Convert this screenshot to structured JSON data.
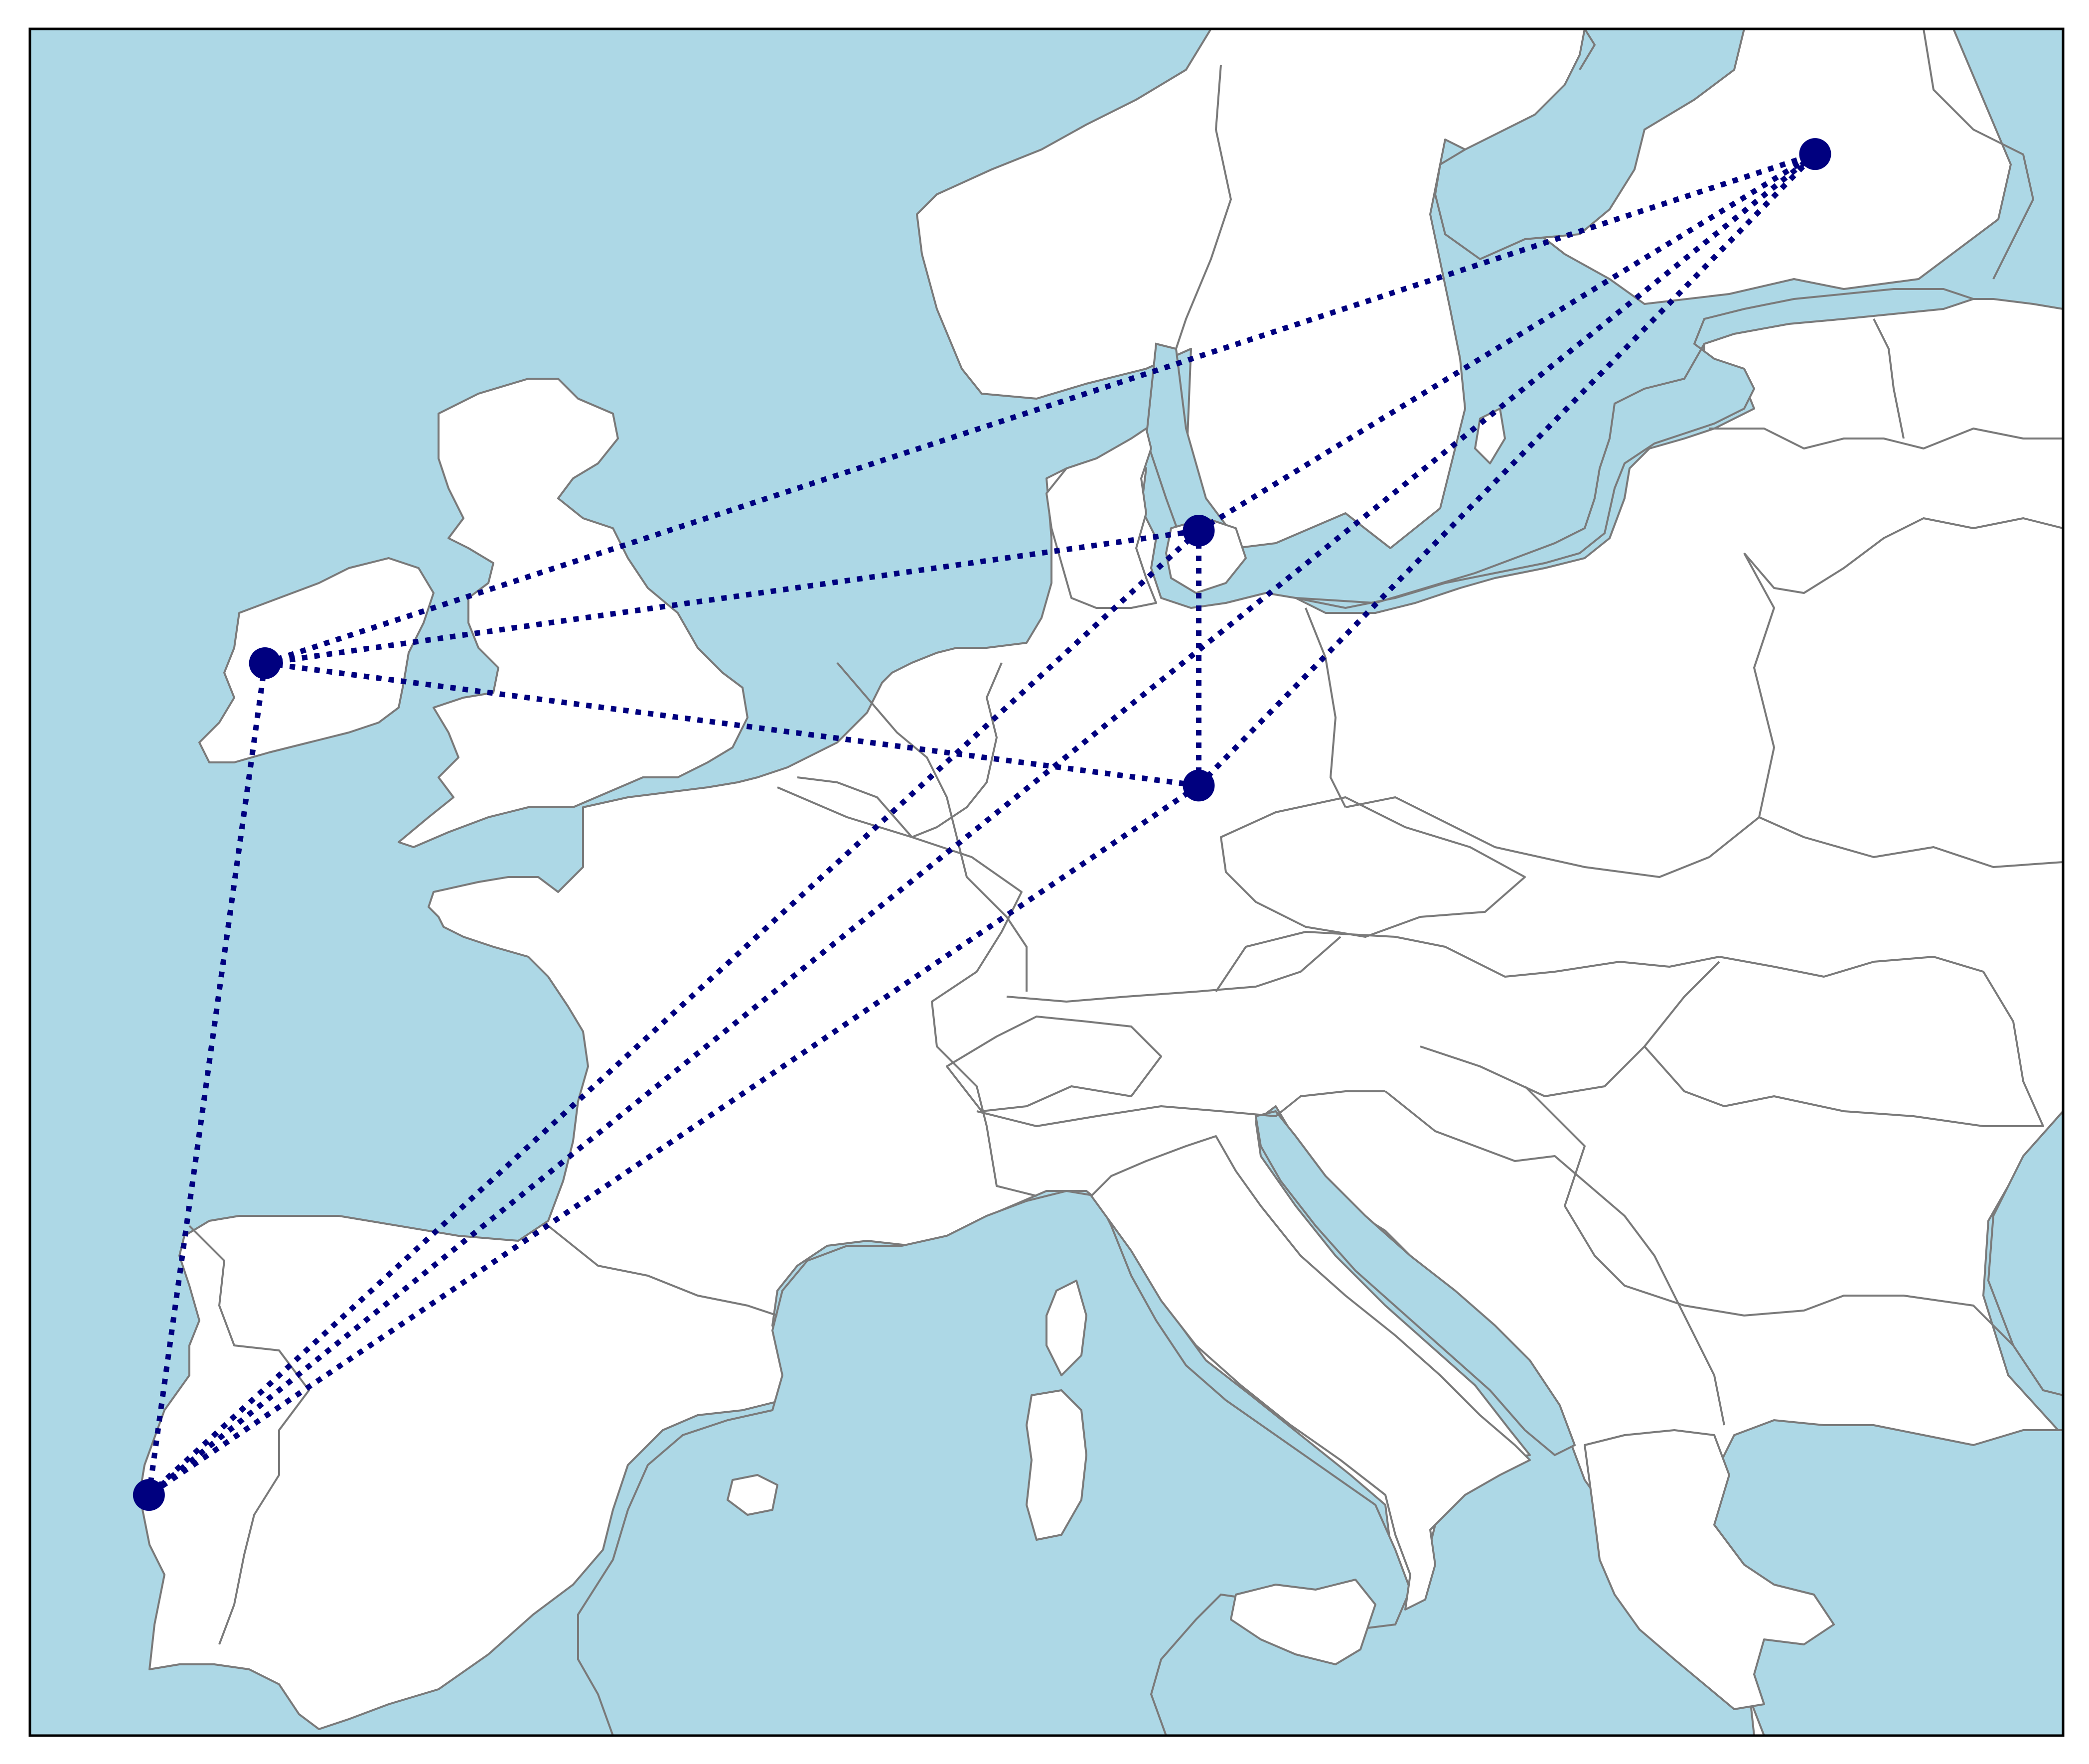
{
  "map": {
    "projection": "plate-carree",
    "extent": {
      "lon": [
        -11,
        30
      ],
      "lat": [
        34.5,
        64.5
      ]
    },
    "colors": {
      "ocean": "#add8e6",
      "land": "#ffffff",
      "coast": "#7a7a7a",
      "route": "#00007f",
      "frame": "#000000"
    },
    "features": [
      "coastlines",
      "country-borders",
      "ocean-fill"
    ],
    "points": [
      {
        "id": "dublin",
        "lon": -6.26,
        "lat": 53.35
      },
      {
        "id": "copenhagen",
        "lon": 12.57,
        "lat": 55.68
      },
      {
        "id": "hanover",
        "lon": 12.57,
        "lat": 51.2
      },
      {
        "id": "helsinki",
        "lon": 25.0,
        "lat": 62.3
      },
      {
        "id": "lisbon",
        "lon": -8.6,
        "lat": 38.73
      }
    ],
    "routes": [
      [
        "dublin",
        "helsinki"
      ],
      [
        "dublin",
        "copenhagen"
      ],
      [
        "dublin",
        "hanover"
      ],
      [
        "dublin",
        "lisbon"
      ],
      [
        "copenhagen",
        "helsinki"
      ],
      [
        "copenhagen",
        "hanover"
      ],
      [
        "copenhagen",
        "lisbon"
      ],
      [
        "hanover",
        "helsinki"
      ],
      [
        "hanover",
        "lisbon"
      ],
      [
        "helsinki",
        "lisbon"
      ]
    ],
    "route_style": "dotted",
    "marker_shape": "circle"
  }
}
